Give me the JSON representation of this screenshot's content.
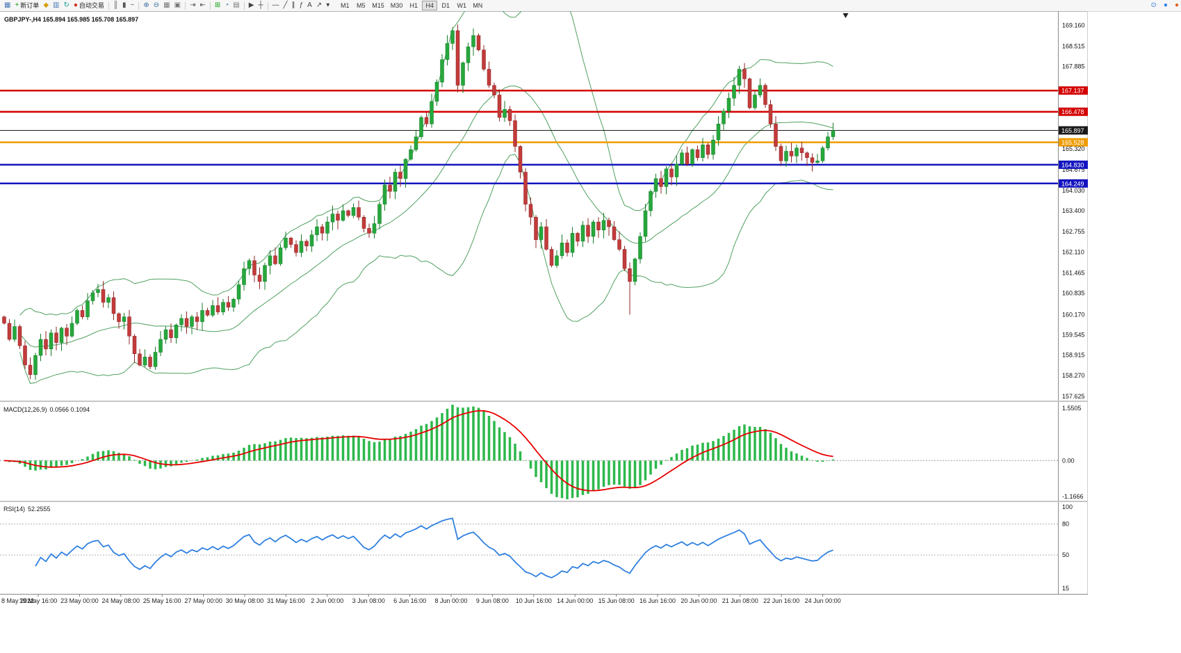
{
  "toolbar": {
    "items": [
      {
        "name": "chart-window-icon",
        "glyph": "▦",
        "color": "#4a7ab5"
      },
      {
        "name": "new-order-button",
        "glyph": "+",
        "color": "#18a018",
        "label": "新订单"
      },
      {
        "name": "alerts-icon",
        "glyph": "◆",
        "color": "#d8a010"
      },
      {
        "name": "market-watch-icon",
        "glyph": "▥",
        "color": "#4a7ab5"
      },
      {
        "name": "refresh-icon",
        "glyph": "↻",
        "color": "#13a08e"
      },
      {
        "name": "autotrading-button",
        "glyph": "●",
        "color": "#d03020",
        "label": "自动交易"
      },
      {
        "sep": true
      },
      {
        "name": "bar-chart-icon",
        "glyph": "║",
        "color": "#555555"
      },
      {
        "name": "candlestick-chart-icon",
        "glyph": "▮",
        "color": "#555555"
      },
      {
        "name": "line-chart-icon",
        "glyph": "~",
        "color": "#555555"
      },
      {
        "sep": true
      },
      {
        "name": "zoom-in-icon",
        "glyph": "⊕",
        "color": "#3a6ea5"
      },
      {
        "name": "zoom-out-icon",
        "glyph": "⊖",
        "color": "#3a6ea5"
      },
      {
        "name": "grid-icon",
        "glyph": "▦",
        "color": "#777777"
      },
      {
        "name": "tile-windows-icon",
        "glyph": "▣",
        "color": "#777777"
      },
      {
        "sep": true
      },
      {
        "name": "auto-scroll-icon",
        "glyph": "⇥",
        "color": "#555555"
      },
      {
        "name": "chart-shift-icon",
        "glyph": "⇤",
        "color": "#555555"
      },
      {
        "sep": true
      },
      {
        "name": "add-indicator-icon",
        "glyph": "⊞",
        "color": "#18a018"
      },
      {
        "name": "periods-icon",
        "glyph": "◔",
        "color": "#3a6ea5"
      },
      {
        "name": "templates-icon",
        "glyph": "▤",
        "color": "#777777"
      },
      {
        "sep": true
      },
      {
        "name": "cursor-icon",
        "glyph": "▶",
        "color": "#444444"
      },
      {
        "name": "crosshair-icon",
        "glyph": "┼",
        "color": "#444444"
      },
      {
        "sep": true
      },
      {
        "name": "horizontal-line-icon",
        "glyph": "—",
        "color": "#444444"
      },
      {
        "name": "trendline-icon",
        "glyph": "╱",
        "color": "#444444"
      },
      {
        "name": "equidistant-channel-icon",
        "glyph": "∥",
        "color": "#444444"
      },
      {
        "name": "fibonacci-icon",
        "glyph": "ƒ",
        "color": "#444444"
      },
      {
        "name": "text-tool-icon",
        "glyph": "A",
        "color": "#444444"
      },
      {
        "name": "arrows-tool-icon",
        "glyph": "↗",
        "color": "#444444"
      },
      {
        "name": "tools-dropdown-icon",
        "glyph": "▾",
        "color": "#444444"
      }
    ],
    "timeframes": [
      "M1",
      "M5",
      "M15",
      "M30",
      "H1",
      "H4",
      "D1",
      "W1",
      "MN"
    ],
    "active_timeframe": "H4",
    "right_items": [
      {
        "name": "search-icon",
        "glyph": "⊙",
        "color": "#2f80e0"
      },
      {
        "name": "community-icon",
        "glyph": "●",
        "color": "#2f80e0"
      },
      {
        "name": "notifications-icon",
        "glyph": "●",
        "color": "#e06020"
      }
    ]
  },
  "chart": {
    "symbol_header": "GBPJPY-,H4 165.894 165.985 165.708 165.897",
    "price_axis_ticks": [
      "169.160",
      "168.515",
      "167.885",
      "165.320",
      "164.675",
      "164.030",
      "163.400",
      "162.755",
      "162.110",
      "161.465",
      "160.835",
      "160.170",
      "159.545",
      "158.915",
      "158.270",
      "157.625"
    ],
    "hlines": [
      {
        "price": 167.137,
        "label": "167.137",
        "color": "#d40000",
        "text": "#ffffff",
        "width": 2.5
      },
      {
        "price": 166.478,
        "label": "166.478",
        "color": "#d40000",
        "text": "#ffffff",
        "width": 2.5
      },
      {
        "price": 165.897,
        "label": "165.897",
        "color": "#1a1a1a",
        "text": "#ffffff",
        "width": 1
      },
      {
        "price": 165.528,
        "label": "165.528",
        "color": "#ef9b00",
        "text": "#ffffff",
        "width": 2.5
      },
      {
        "price": 164.83,
        "label": "164.830",
        "color": "#1414c0",
        "text": "#ffffff",
        "width": 2.5
      },
      {
        "price": 164.249,
        "label": "164.249",
        "color": "#1414c0",
        "text": "#ffffff",
        "width": 2.5
      }
    ]
  },
  "chart_data": {
    "type": "candlestick",
    "symbol": "GBPJPY-",
    "timeframe": "H4",
    "ohlc_display": {
      "open": "165.894",
      "high": "165.985",
      "low": "165.708",
      "close": "165.897"
    },
    "price_range": [
      157.54,
      169.52
    ],
    "first_open": 160.1,
    "up_color": "#26a83c",
    "down_color": "#c23b3b",
    "up_dark": "#157a28",
    "down_dark": "#8f2525",
    "closes": [
      159.9,
      159.4,
      159.8,
      159.2,
      158.6,
      158.3,
      158.9,
      159.4,
      159.1,
      159.6,
      159.3,
      159.75,
      159.5,
      159.9,
      160.3,
      160.1,
      160.6,
      160.85,
      160.95,
      160.55,
      160.7,
      160.2,
      159.95,
      160.1,
      159.5,
      158.95,
      158.6,
      158.85,
      158.55,
      159.0,
      159.4,
      159.7,
      159.45,
      159.85,
      160.05,
      159.8,
      160.1,
      159.95,
      160.3,
      160.15,
      160.45,
      160.25,
      160.55,
      160.4,
      160.65,
      161.1,
      161.6,
      161.85,
      161.4,
      161.2,
      161.7,
      162.0,
      161.75,
      162.25,
      162.55,
      162.35,
      162.1,
      162.45,
      162.3,
      162.65,
      162.9,
      162.7,
      163.05,
      163.3,
      163.1,
      163.4,
      163.25,
      163.5,
      163.2,
      162.85,
      162.7,
      163.0,
      163.6,
      164.2,
      164.0,
      164.6,
      164.4,
      165.0,
      165.3,
      165.7,
      166.3,
      166.1,
      166.8,
      167.4,
      168.1,
      168.6,
      169.0,
      167.3,
      168.0,
      168.5,
      168.85,
      168.4,
      167.8,
      167.3,
      167.0,
      166.3,
      166.55,
      166.2,
      165.4,
      164.6,
      163.6,
      163.2,
      162.5,
      162.9,
      162.2,
      161.7,
      162.0,
      162.4,
      162.1,
      162.7,
      162.45,
      162.95,
      162.6,
      163.05,
      162.8,
      163.1,
      162.9,
      162.5,
      162.2,
      161.6,
      161.2,
      161.9,
      162.6,
      163.4,
      164.0,
      164.4,
      164.15,
      164.7,
      164.45,
      164.85,
      165.2,
      164.85,
      165.3,
      165.05,
      165.45,
      165.15,
      165.6,
      166.1,
      166.5,
      166.9,
      167.3,
      167.8,
      167.5,
      166.6,
      167.0,
      167.3,
      166.7,
      166.1,
      165.4,
      164.95,
      165.25,
      165.1,
      165.35,
      165.2,
      165.05,
      164.9,
      164.95,
      165.35,
      165.7,
      165.897
    ],
    "wick_overrides": {
      "86": {
        "high": 169.08
      },
      "90": {
        "high": 168.97
      },
      "120": {
        "low": 160.17
      }
    },
    "indicators": {
      "bollinger": {
        "period": 20,
        "deviation": 2,
        "color": "#4fa060"
      },
      "macd": {
        "label": "MACD(12,26,9)",
        "values_text": "0.0566 0.1094",
        "scale_top": "1.5505",
        "scale_zero": "0.00",
        "scale_bottom": "-1.1666",
        "histogram_color": "#2db84b",
        "signal_color": "#e80000"
      },
      "rsi": {
        "label": "RSI(14)",
        "value_text": "52.2555",
        "scale": [
          "100",
          "80",
          "50",
          "15"
        ],
        "levels": [
          80,
          50
        ],
        "color": "#2f80e0"
      }
    },
    "time_axis": [
      "8 May 2022",
      "19 May 16:00",
      "23 May 00:00",
      "24 May 08:00",
      "25 May 16:00",
      "27 May 00:00",
      "30 May 08:00",
      "31 May 16:00",
      "2 Jun 00:00",
      "3 Jun 08:00",
      "6 Jun 16:00",
      "8 Jun 00:00",
      "9 Jun 08:00",
      "10 Jun 16:00",
      "14 Jun 00:00",
      "15 Jun 08:00",
      "16 Jun 16:00",
      "20 Jun 00:00",
      "21 Jun 08:00",
      "22 Jun 16:00",
      "24 Jun 00:00"
    ]
  }
}
